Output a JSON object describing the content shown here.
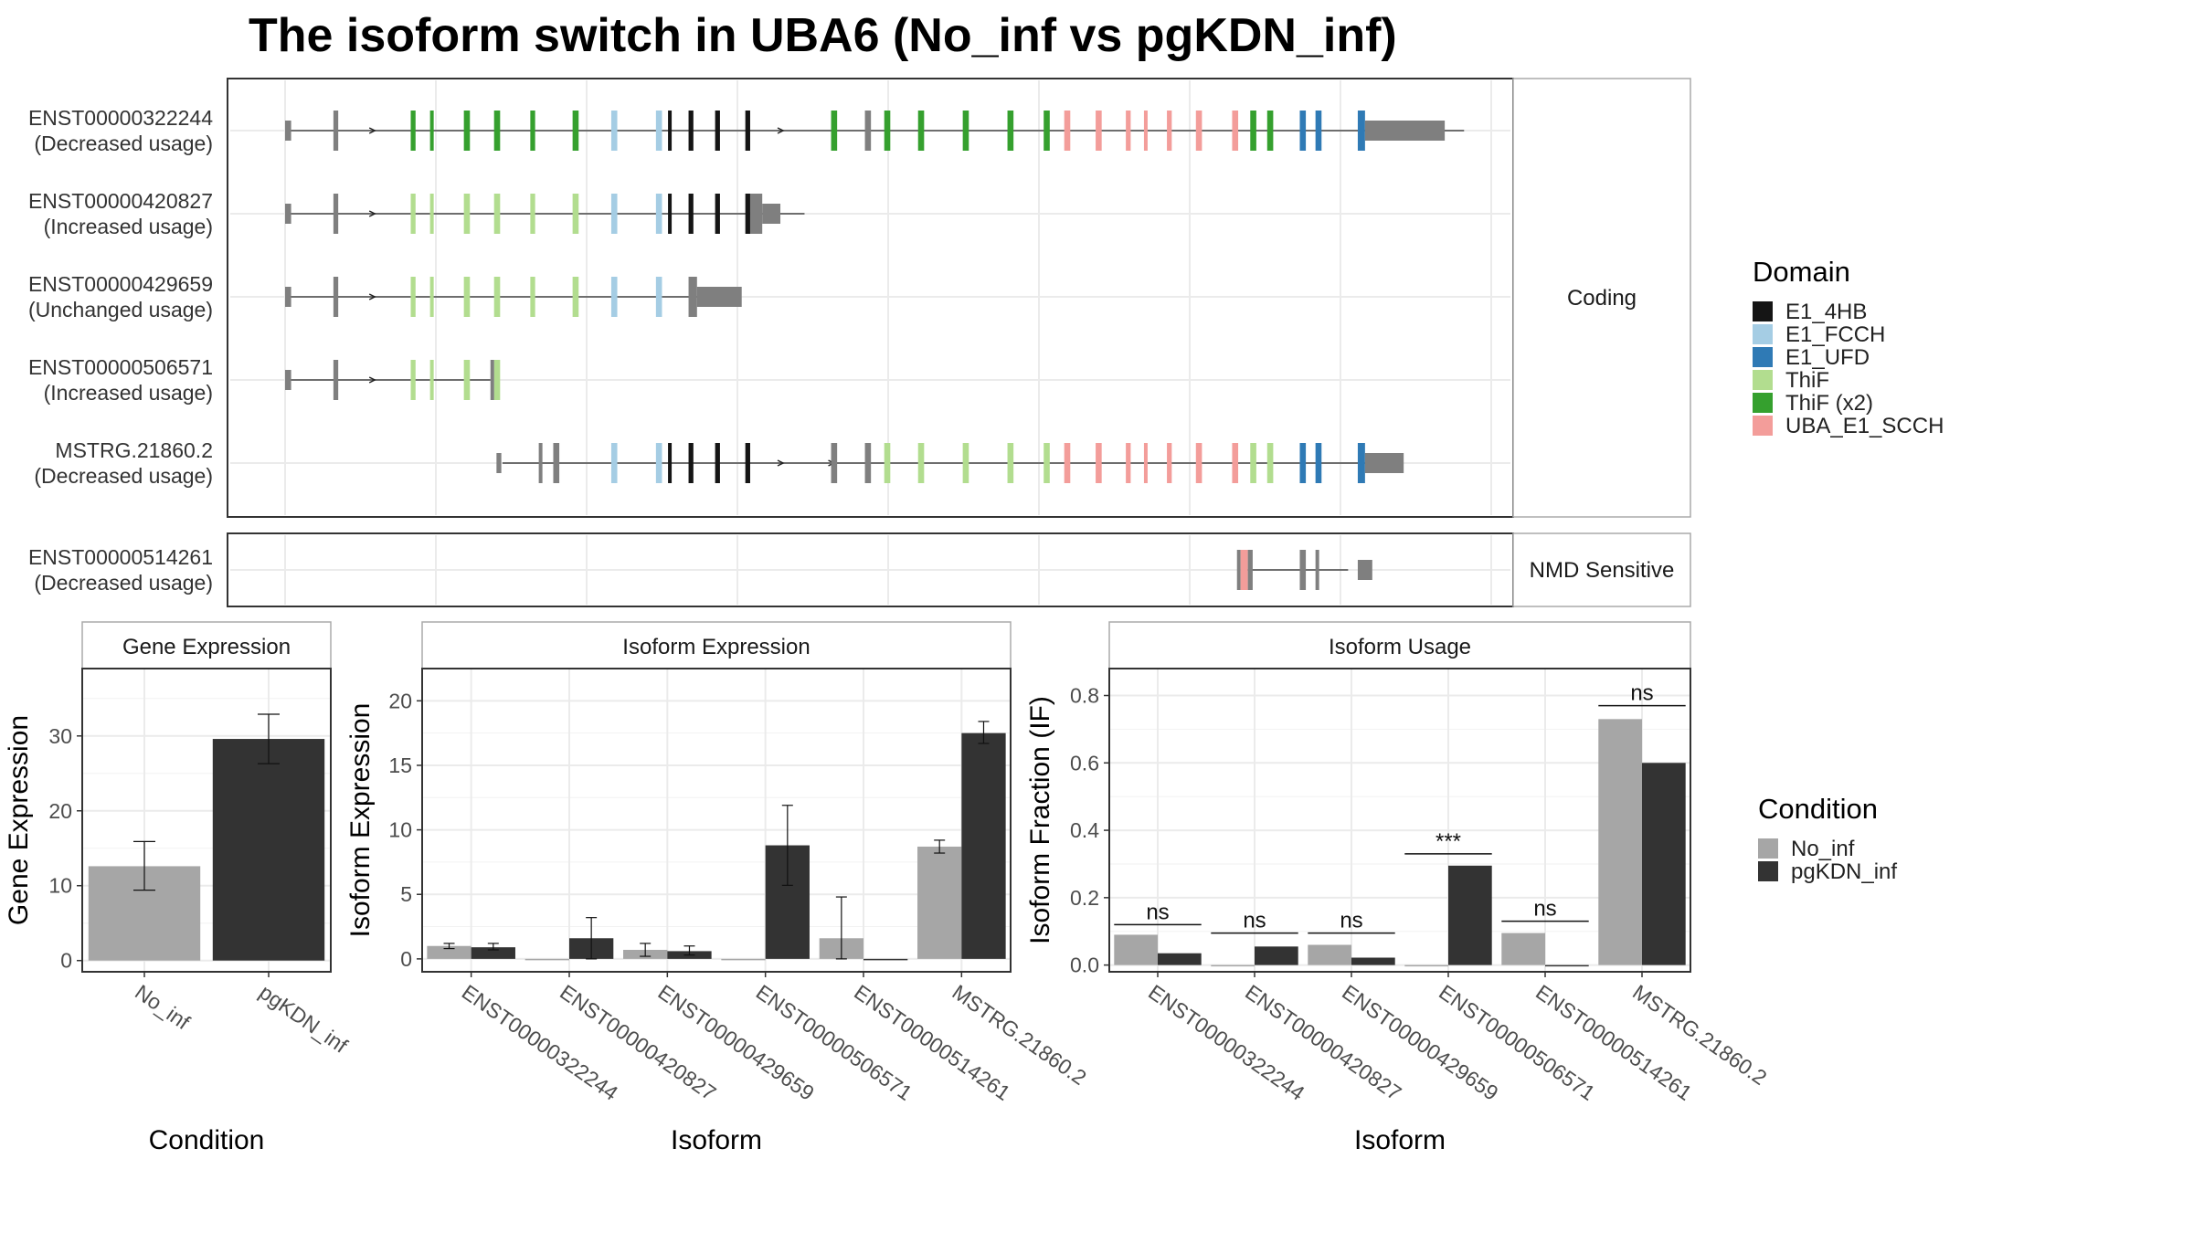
{
  "title": "The isoform switch in UBA6 (No_inf vs pgKDN_inf)",
  "colors": {
    "E1_4HB": "#151515",
    "E1_FCCH": "#a5cde4",
    "E1_UFD": "#2f7ab5",
    "ThiF": "#b2dd8f",
    "ThiF (x2)": "#35a02e",
    "UBA_E1_SCCH": "#f39d9a",
    "No_inf": "#a6a6a6",
    "pgKDN_inf": "#333333",
    "utr": "#7f7f7f"
  },
  "legend_domain": {
    "title": "Domain",
    "items": [
      "E1_4HB",
      "E1_FCCH",
      "E1_UFD",
      "ThiF",
      "ThiF (x2)",
      "UBA_E1_SCCH"
    ]
  },
  "legend_condition": {
    "title": "Condition",
    "items": [
      "No_inf",
      "pgKDN_inf"
    ]
  },
  "structure": {
    "coding_label": "Coding",
    "nmd_label": "NMD Sensitive",
    "x_domain": [
      0,
      1000
    ],
    "coding": [
      {
        "line1": "ENST00000322244",
        "line2": "(Decreased usage)",
        "span": [
          4,
          976
        ],
        "blocks": [
          [
            0,
            5,
            "utr",
            0.5
          ],
          [
            40,
            4,
            "utr",
            1
          ],
          [
            104,
            4,
            "ThiF (x2)",
            1
          ],
          [
            120,
            3,
            "ThiF (x2)",
            1
          ],
          [
            148,
            5,
            "ThiF (x2)",
            1
          ],
          [
            173,
            5,
            "ThiF (x2)",
            1
          ],
          [
            203,
            4,
            "ThiF (x2)",
            1
          ],
          [
            238,
            5,
            "ThiF (x2)",
            1
          ],
          [
            270,
            5,
            "E1_FCCH",
            1
          ],
          [
            307,
            5,
            "E1_FCCH",
            1
          ],
          [
            317,
            3,
            "E1_4HB",
            1
          ],
          [
            334,
            4,
            "E1_4HB",
            1
          ],
          [
            356,
            4,
            "E1_4HB",
            1
          ],
          [
            381,
            4,
            "E1_4HB",
            1
          ],
          [
            452,
            5,
            "ThiF (x2)",
            1
          ],
          [
            480,
            5,
            "utr",
            1
          ],
          [
            496,
            5,
            "ThiF (x2)",
            1
          ],
          [
            524,
            5,
            "ThiF (x2)",
            1
          ],
          [
            561,
            5,
            "ThiF (x2)",
            1
          ],
          [
            598,
            5,
            "ThiF (x2)",
            1
          ],
          [
            628,
            5,
            "ThiF (x2)",
            1
          ],
          [
            645,
            5,
            "UBA_E1_SCCH",
            1
          ],
          [
            671,
            5,
            "UBA_E1_SCCH",
            1
          ],
          [
            696,
            4,
            "UBA_E1_SCCH",
            1
          ],
          [
            711,
            3,
            "UBA_E1_SCCH",
            1
          ],
          [
            730,
            4,
            "UBA_E1_SCCH",
            1
          ],
          [
            754,
            5,
            "UBA_E1_SCCH",
            1
          ],
          [
            784,
            5,
            "UBA_E1_SCCH",
            1
          ],
          [
            799,
            5,
            "ThiF (x2)",
            1
          ],
          [
            813,
            5,
            "ThiF (x2)",
            1
          ],
          [
            840,
            5,
            "E1_UFD",
            1
          ],
          [
            853,
            5,
            "E1_UFD",
            1
          ],
          [
            888,
            6,
            "E1_UFD",
            1
          ],
          [
            894,
            66,
            "utr",
            0.5
          ]
        ],
        "arrows": [
          72,
          410
        ]
      },
      {
        "line1": "ENST00000420827",
        "line2": "(Increased usage)",
        "span": [
          4,
          430
        ],
        "blocks": [
          [
            0,
            5,
            "utr",
            0.5
          ],
          [
            40,
            4,
            "utr",
            1
          ],
          [
            104,
            4,
            "ThiF",
            1
          ],
          [
            120,
            3,
            "ThiF",
            1
          ],
          [
            148,
            5,
            "ThiF",
            1
          ],
          [
            173,
            5,
            "ThiF",
            1
          ],
          [
            203,
            4,
            "ThiF",
            1
          ],
          [
            238,
            5,
            "ThiF",
            1
          ],
          [
            270,
            5,
            "E1_FCCH",
            1
          ],
          [
            307,
            5,
            "E1_FCCH",
            1
          ],
          [
            317,
            3,
            "E1_4HB",
            1
          ],
          [
            334,
            4,
            "E1_4HB",
            1
          ],
          [
            356,
            4,
            "E1_4HB",
            1
          ],
          [
            381,
            4,
            "E1_4HB",
            1
          ],
          [
            385,
            10,
            "utr",
            1
          ],
          [
            395,
            15,
            "utr",
            0.5
          ]
        ],
        "arrows": [
          72
        ]
      },
      {
        "line1": "ENST00000429659",
        "line2": "(Unchanged usage)",
        "span": [
          4,
          345
        ],
        "blocks": [
          [
            0,
            5,
            "utr",
            0.5
          ],
          [
            40,
            4,
            "utr",
            1
          ],
          [
            104,
            4,
            "ThiF",
            1
          ],
          [
            120,
            3,
            "ThiF",
            1
          ],
          [
            148,
            5,
            "ThiF",
            1
          ],
          [
            173,
            5,
            "ThiF",
            1
          ],
          [
            203,
            4,
            "ThiF",
            1
          ],
          [
            238,
            5,
            "ThiF",
            1
          ],
          [
            270,
            5,
            "E1_FCCH",
            1
          ],
          [
            307,
            5,
            "E1_FCCH",
            1
          ],
          [
            334,
            7,
            "utr",
            1
          ],
          [
            341,
            37,
            "utr",
            0.5
          ]
        ],
        "arrows": [
          72
        ]
      },
      {
        "line1": "ENST00000506571",
        "line2": "(Increased usage)",
        "span": [
          4,
          170
        ],
        "blocks": [
          [
            0,
            5,
            "utr",
            0.5
          ],
          [
            40,
            4,
            "utr",
            1
          ],
          [
            104,
            4,
            "ThiF",
            1
          ],
          [
            120,
            3,
            "ThiF",
            1
          ],
          [
            148,
            5,
            "ThiF",
            1
          ],
          [
            173,
            5,
            "ThiF",
            1
          ],
          [
            170,
            3,
            "utr",
            1
          ]
        ],
        "arrows": [
          72
        ]
      },
      {
        "line1": "MSTRG.21860.2",
        "line2": "(Decreased usage)",
        "span": [
          180,
          900
        ],
        "blocks": [
          [
            175,
            4,
            "utr",
            0.5
          ],
          [
            210,
            3,
            "utr",
            1
          ],
          [
            222,
            5,
            "utr",
            1
          ],
          [
            270,
            5,
            "E1_FCCH",
            1
          ],
          [
            307,
            5,
            "E1_FCCH",
            1
          ],
          [
            317,
            3,
            "E1_4HB",
            1
          ],
          [
            334,
            4,
            "E1_4HB",
            1
          ],
          [
            356,
            4,
            "E1_4HB",
            1
          ],
          [
            381,
            4,
            "E1_4HB",
            1
          ],
          [
            452,
            5,
            "utr",
            1
          ],
          [
            480,
            5,
            "utr",
            1
          ],
          [
            496,
            5,
            "ThiF",
            1
          ],
          [
            524,
            5,
            "ThiF",
            1
          ],
          [
            561,
            5,
            "ThiF",
            1
          ],
          [
            598,
            5,
            "ThiF",
            1
          ],
          [
            628,
            5,
            "ThiF",
            1
          ],
          [
            645,
            5,
            "UBA_E1_SCCH",
            1
          ],
          [
            671,
            5,
            "UBA_E1_SCCH",
            1
          ],
          [
            696,
            4,
            "UBA_E1_SCCH",
            1
          ],
          [
            711,
            3,
            "UBA_E1_SCCH",
            1
          ],
          [
            730,
            4,
            "UBA_E1_SCCH",
            1
          ],
          [
            754,
            5,
            "UBA_E1_SCCH",
            1
          ],
          [
            784,
            5,
            "UBA_E1_SCCH",
            1
          ],
          [
            799,
            5,
            "ThiF",
            1
          ],
          [
            813,
            5,
            "ThiF",
            1
          ],
          [
            840,
            5,
            "E1_UFD",
            1
          ],
          [
            853,
            5,
            "E1_UFD",
            1
          ],
          [
            888,
            6,
            "E1_UFD",
            1
          ],
          [
            894,
            32,
            "utr",
            0.5
          ]
        ],
        "arrows": [
          410,
          452
        ]
      }
    ],
    "nmd": [
      {
        "line1": "ENST00000514261",
        "line2": "(Decreased usage)",
        "span": [
          793,
          880
        ],
        "blocks": [
          [
            788,
            3,
            "utr",
            1
          ],
          [
            791,
            6,
            "UBA_E1_SCCH",
            1
          ],
          [
            797,
            4,
            "utr",
            1
          ],
          [
            840,
            5,
            "utr",
            1
          ],
          [
            853,
            3,
            "utr",
            1
          ],
          [
            888,
            12,
            "utr",
            0.5
          ]
        ],
        "arrows": []
      }
    ]
  },
  "chart_data": [
    {
      "type": "bar",
      "title": "Gene Expression",
      "xlabel": "Condition",
      "ylabel": "Gene Expression",
      "categories": [
        "No_inf",
        "pgKDN_inf"
      ],
      "values": [
        12.6,
        29.6
      ],
      "errors": [
        [
          9.4,
          15.9
        ],
        [
          26.3,
          32.9
        ]
      ],
      "ylim": [
        -1.5,
        39
      ],
      "yticks": [
        0,
        10,
        20,
        30
      ]
    },
    {
      "type": "bar",
      "title": "Isoform Expression",
      "xlabel": "Isoform",
      "ylabel": "Isoform Expression",
      "categories": [
        "ENST00000322244",
        "ENST00000420827",
        "ENST00000429659",
        "ENST00000506571",
        "ENST00000514261",
        "MSTRG.21860.2"
      ],
      "series": [
        {
          "name": "No_inf",
          "values": [
            1.0,
            0.0,
            0.7,
            0.0,
            1.6,
            8.7
          ],
          "errors": [
            [
              0.8,
              1.2
            ],
            null,
            [
              0.2,
              1.2
            ],
            null,
            [
              0.0,
              4.8
            ],
            [
              8.2,
              9.2
            ]
          ]
        },
        {
          "name": "pgKDN_inf",
          "values": [
            0.9,
            1.6,
            0.6,
            8.8,
            0.0,
            17.5
          ],
          "errors": [
            [
              0.7,
              1.2
            ],
            [
              0.0,
              3.2
            ],
            [
              0.3,
              1.0
            ],
            [
              5.7,
              11.9
            ],
            null,
            [
              16.7,
              18.4
            ]
          ]
        }
      ],
      "ylim": [
        -1.0,
        22.5
      ],
      "yticks": [
        0,
        5,
        10,
        15,
        20
      ]
    },
    {
      "type": "bar",
      "title": "Isoform Usage",
      "xlabel": "Isoform",
      "ylabel": "Isoform Fraction (IF)",
      "categories": [
        "ENST00000322244",
        "ENST00000420827",
        "ENST00000429659",
        "ENST00000506571",
        "ENST00000514261",
        "MSTRG.21860.2"
      ],
      "series": [
        {
          "name": "No_inf",
          "values": [
            0.09,
            0.0,
            0.06,
            0.0,
            0.095,
            0.73
          ]
        },
        {
          "name": "pgKDN_inf",
          "values": [
            0.035,
            0.055,
            0.022,
            0.295,
            0.0,
            0.6
          ]
        }
      ],
      "annotations": [
        "ns",
        "ns",
        "ns",
        "***",
        "ns",
        "ns"
      ],
      "annotation_y": [
        0.12,
        0.095,
        0.095,
        0.33,
        0.13,
        0.77
      ],
      "ylim": [
        -0.02,
        0.88
      ],
      "yticks": [
        0.0,
        0.2,
        0.4,
        0.6,
        0.8
      ],
      "ytick_labels": [
        "0.0",
        "0.2",
        "0.4",
        "0.6",
        "0.8"
      ]
    }
  ]
}
